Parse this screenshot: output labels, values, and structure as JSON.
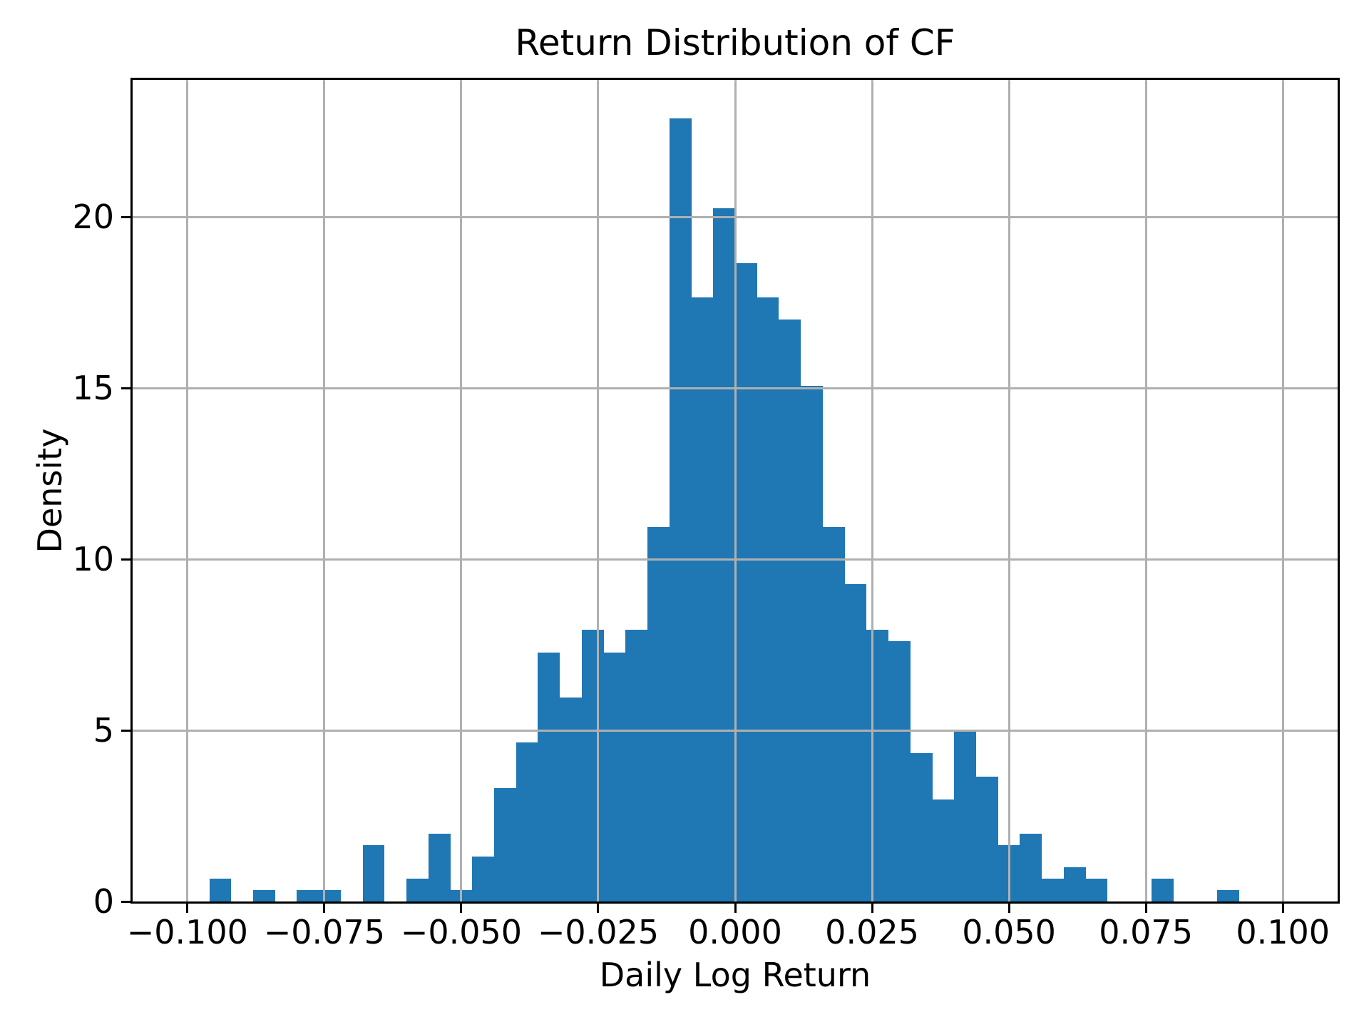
{
  "chart_data": {
    "type": "bar",
    "variant": "histogram",
    "title": "Return Distribution of CF",
    "xlabel": "Daily Log Return",
    "ylabel": "Density",
    "xlim": [
      -0.11,
      0.11
    ],
    "ylim": [
      0,
      24
    ],
    "grid": true,
    "grid_above_bars": true,
    "legend": "none",
    "bin_width": 0.004,
    "bin_left_edges": [
      -0.096,
      -0.092,
      -0.088,
      -0.084,
      -0.08,
      -0.076,
      -0.072,
      -0.068,
      -0.064,
      -0.06,
      -0.056,
      -0.052,
      -0.048,
      -0.044,
      -0.04,
      -0.036,
      -0.032,
      -0.028,
      -0.024,
      -0.02,
      -0.016,
      -0.012,
      -0.008,
      -0.004,
      0.0,
      0.004,
      0.008,
      0.012,
      0.016,
      0.02,
      0.024,
      0.028,
      0.032,
      0.036,
      0.04,
      0.044,
      0.048,
      0.052,
      0.056,
      0.06,
      0.064,
      0.068,
      0.072,
      0.076,
      0.08,
      0.084,
      0.088
    ],
    "densities": [
      0.66,
      0,
      0.33,
      0,
      0.33,
      0.33,
      0,
      1.65,
      0,
      0.66,
      1.98,
      0.33,
      1.32,
      3.31,
      4.64,
      7.28,
      5.96,
      7.94,
      7.28,
      7.94,
      10.93,
      22.87,
      17.64,
      20.26,
      18.65,
      17.64,
      17.0,
      15.07,
      10.93,
      9.27,
      7.94,
      7.61,
      4.33,
      2.98,
      4.96,
      3.64,
      1.65,
      1.98,
      0.66,
      1.0,
      0.66,
      0,
      0,
      0.66,
      0,
      0,
      0.33
    ],
    "xticks": [
      -0.1,
      -0.075,
      -0.05,
      -0.025,
      0.0,
      0.025,
      0.05,
      0.075,
      0.1
    ],
    "xtick_labels": [
      "−0.100",
      "−0.075",
      "−0.050",
      "−0.025",
      "0.000",
      "0.025",
      "0.050",
      "0.075",
      "0.100"
    ],
    "yticks": [
      0,
      5,
      10,
      15,
      20
    ],
    "ytick_labels": [
      "0",
      "5",
      "10",
      "15",
      "20"
    ],
    "colors": {
      "bar": "#1f77b4",
      "grid": "#b0b0b0",
      "spine": "#000000",
      "text": "#000000",
      "background": "#ffffff"
    }
  }
}
